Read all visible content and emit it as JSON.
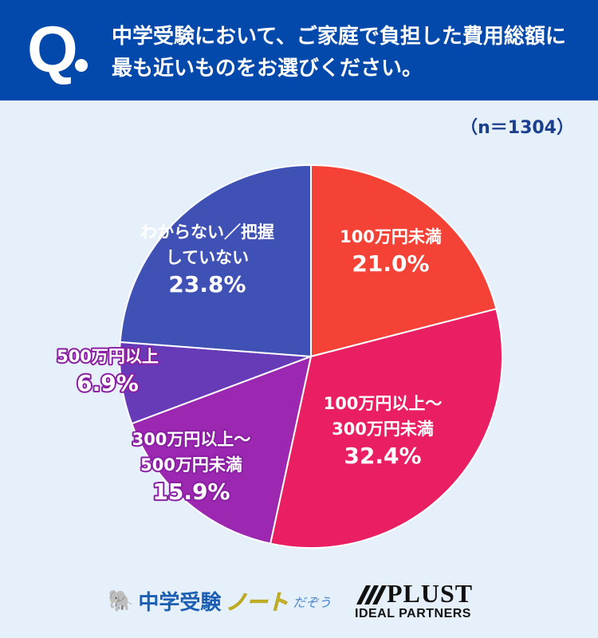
{
  "header": {
    "q_mark": "Q",
    "title_line1": "中学受験において、ご家庭で負担した費用総額に",
    "title_line2": "最も近いものをお選びください。"
  },
  "sample": "（n＝1304）",
  "chart_data": {
    "type": "pie",
    "start": "top, clockwise",
    "slices": [
      {
        "label": [
          "100万円未満"
        ],
        "value": 21.0,
        "text": "21.0%",
        "color": "#f44336",
        "inside": true
      },
      {
        "label": [
          "100万円以上～",
          "300万円未満"
        ],
        "value": 32.4,
        "text": "32.4%",
        "color": "#e91e63",
        "inside": true
      },
      {
        "label": [
          "300万円以上～",
          "500万円未満"
        ],
        "value": 15.9,
        "text": "15.9%",
        "color": "#9c27b0",
        "inside": false
      },
      {
        "label": [
          "500万円以上"
        ],
        "value": 6.9,
        "text": "6.9%",
        "color": "#673ab7",
        "inside": false
      },
      {
        "label": [
          "わからない／把握",
          "していない"
        ],
        "value": 23.8,
        "text": "23.8%",
        "color": "#3f51b5",
        "inside": true
      }
    ]
  },
  "footer": {
    "logo1_main": "中学受験",
    "logo1_note": "ノート",
    "logo1_suffix": "だぞう",
    "logo2_top": "PLUST",
    "logo2_bottom": "IDEAL PARTNERS"
  }
}
